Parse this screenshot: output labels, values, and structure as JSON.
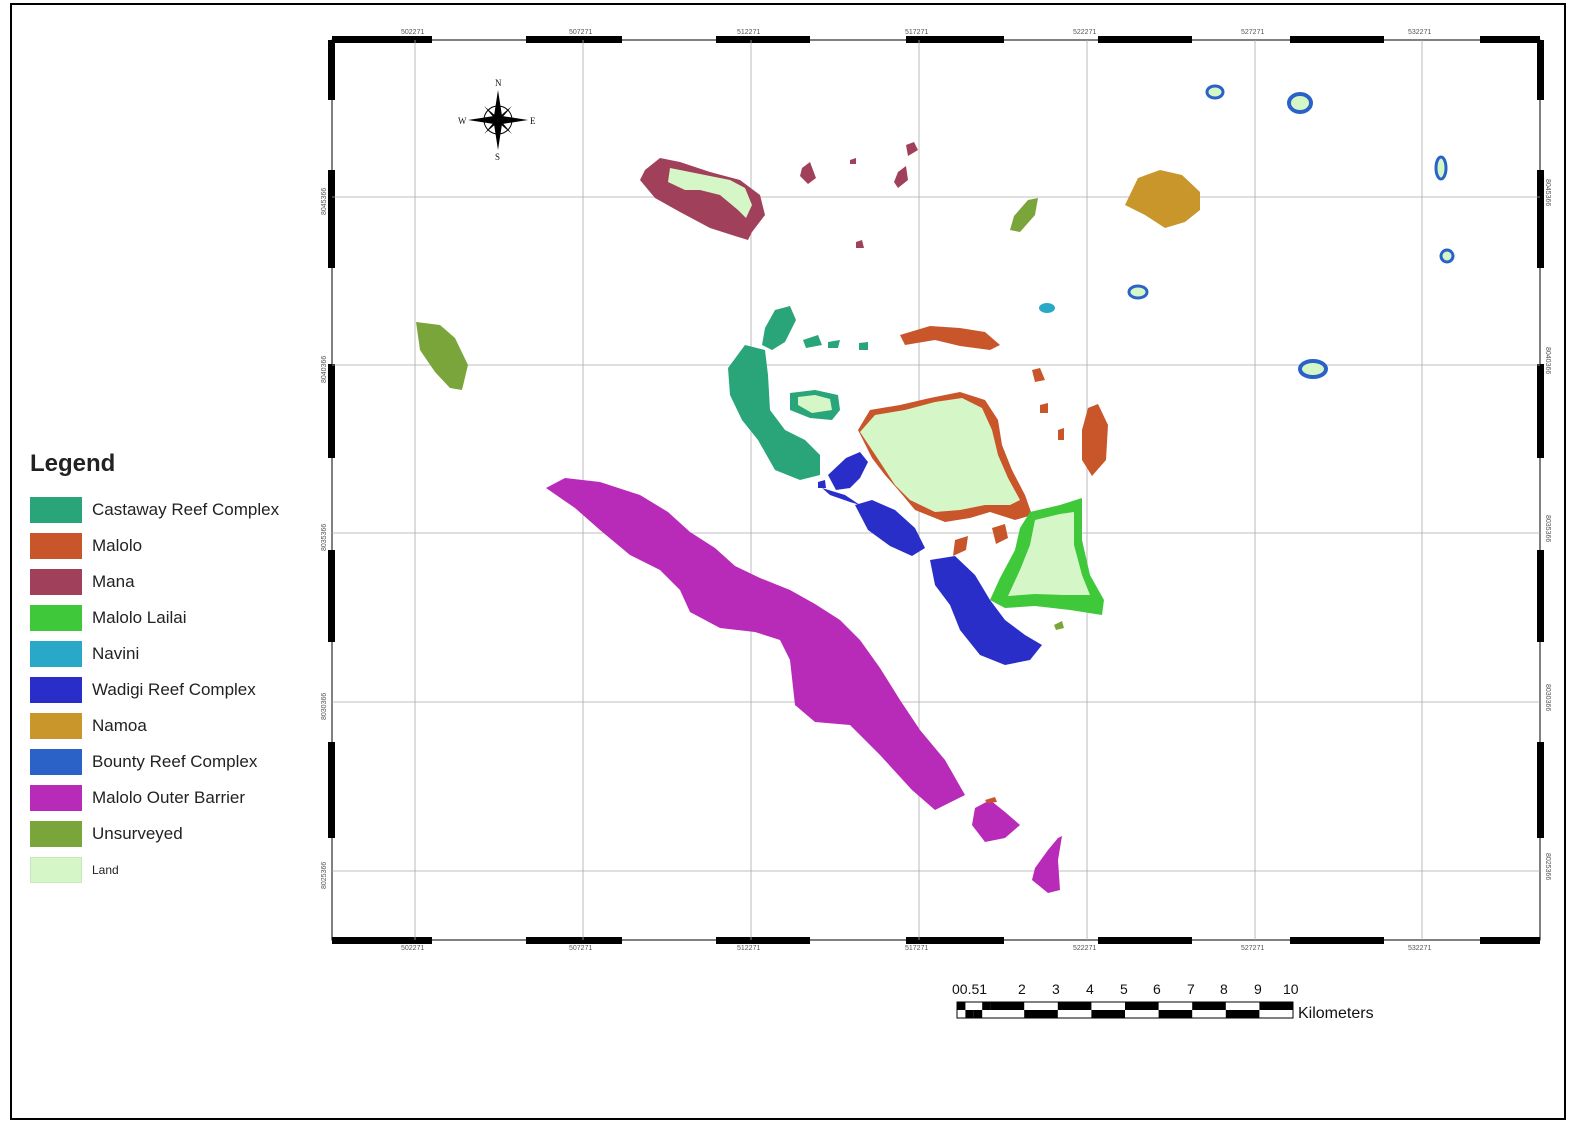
{
  "legend": {
    "title": "Legend",
    "items": [
      {
        "label": "Castaway Reef Complex",
        "color": "#2aa57a"
      },
      {
        "label": "Malolo",
        "color": "#c8562a"
      },
      {
        "label": "Mana",
        "color": "#a0405a"
      },
      {
        "label": "Malolo Lailai",
        "color": "#3fc93a"
      },
      {
        "label": "Navini",
        "color": "#2aa8c8"
      },
      {
        "label": "Wadigi Reef Complex",
        "color": "#2a2ec8"
      },
      {
        "label": "Namoa",
        "color": "#c8962a"
      },
      {
        "label": "Bounty Reef Complex",
        "color": "#2a62c8"
      },
      {
        "label": "Malolo Outer Barrier",
        "color": "#b82ab8"
      },
      {
        "label": "Unsurveyed",
        "color": "#7aa53a"
      },
      {
        "label": "Land",
        "color": "#d5f7c8"
      }
    ]
  },
  "grid": {
    "eastings": [
      "502271",
      "507271",
      "512271",
      "517271",
      "522271",
      "527271",
      "532271"
    ],
    "northings": [
      "8045366",
      "8040366",
      "8035366",
      "8030366",
      "8025366"
    ]
  },
  "compass": {
    "n": "N",
    "s": "S",
    "e": "E",
    "w": "W"
  },
  "scale_bar": {
    "labels": [
      "00.51",
      "2",
      "3",
      "4",
      "5",
      "6",
      "7",
      "8",
      "9",
      "10"
    ],
    "unit": "Kilometers"
  }
}
